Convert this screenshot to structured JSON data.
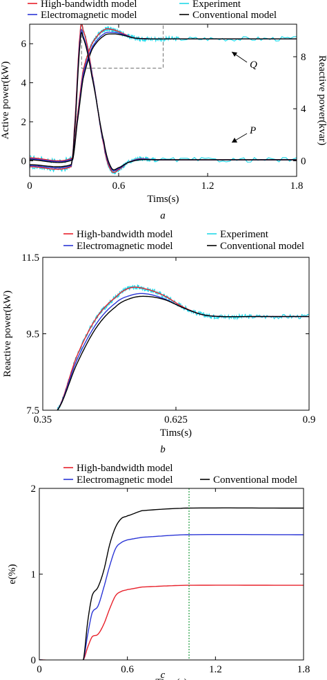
{
  "colors": {
    "high_bandwidth": "#e8202a",
    "electromagnetic": "#2a35d6",
    "conventional": "#000000",
    "experiment": "#22d8e8",
    "marker_line": "#1a9a3a",
    "zoom_box": "#707070"
  },
  "chart_data": [
    {
      "id": "a",
      "type": "line",
      "caption": "a",
      "xlabel": "Tims(s)",
      "ylabel": "Active power(kW)",
      "y2label": "Reactive power(kvar)",
      "xlim": [
        0,
        1.8
      ],
      "ylim": [
        -0.8,
        7
      ],
      "y2lim": [
        -1.2,
        10.5
      ],
      "xticks": [
        "0",
        "0.6",
        "1.2",
        "1.8"
      ],
      "yticks": [
        "0",
        "2",
        "4",
        "6"
      ],
      "y2ticks": [
        "0",
        "4",
        "8"
      ],
      "legend": [
        "High-bandwidth model",
        "Experiment",
        "Electromagnetic model",
        "Conventional model"
      ],
      "legend_position": "top",
      "annotations": [
        "Q",
        "P"
      ],
      "zoom_box": {
        "x": [
          0.35,
          0.9
        ],
        "y": [
          4.75,
          7.0
        ]
      },
      "series": [
        {
          "name": "High-bandwidth model",
          "curve": "Q",
          "x": [
            0,
            0.29,
            0.32,
            0.36,
            0.42,
            0.5,
            0.56,
            0.62,
            0.7,
            0.8,
            1.0,
            1.8
          ],
          "y": [
            0.15,
            0.15,
            2.2,
            4.6,
            6.0,
            6.7,
            6.72,
            6.55,
            6.3,
            6.25,
            6.25,
            6.25
          ]
        },
        {
          "name": "Electromagnetic model",
          "curve": "Q",
          "x": [
            0,
            0.29,
            0.32,
            0.36,
            0.42,
            0.5,
            0.56,
            0.62,
            0.7,
            0.8,
            1.0,
            1.8
          ],
          "y": [
            0.1,
            0.1,
            2.0,
            4.4,
            5.8,
            6.5,
            6.58,
            6.5,
            6.3,
            6.25,
            6.25,
            6.25
          ]
        },
        {
          "name": "Conventional model",
          "curve": "Q",
          "x": [
            0,
            0.29,
            0.32,
            0.36,
            0.42,
            0.5,
            0.56,
            0.62,
            0.7,
            0.8,
            1.0,
            1.8
          ],
          "y": [
            0.05,
            0.05,
            1.9,
            4.2,
            5.7,
            6.4,
            6.5,
            6.45,
            6.3,
            6.25,
            6.25,
            6.25
          ]
        },
        {
          "name": "High-bandwidth model",
          "curve": "P",
          "x": [
            0,
            0.28,
            0.3,
            0.34,
            0.36,
            0.42,
            0.5,
            0.55,
            0.6,
            0.66,
            0.74,
            0.85,
            1.8
          ],
          "y": [
            -0.3,
            -0.3,
            1.5,
            6.5,
            6.7,
            4.5,
            0.8,
            -0.5,
            -0.45,
            -0.1,
            0.1,
            0.05,
            0.05
          ]
        },
        {
          "name": "Electromagnetic model",
          "curve": "P",
          "x": [
            0,
            0.28,
            0.3,
            0.34,
            0.36,
            0.42,
            0.5,
            0.55,
            0.6,
            0.66,
            0.74,
            0.85,
            1.8
          ],
          "y": [
            -0.25,
            -0.25,
            1.3,
            6.2,
            6.4,
            4.4,
            0.9,
            -0.4,
            -0.4,
            -0.1,
            0.08,
            0.05,
            0.05
          ]
        },
        {
          "name": "Conventional model",
          "curve": "P",
          "x": [
            0,
            0.28,
            0.3,
            0.34,
            0.36,
            0.42,
            0.5,
            0.55,
            0.6,
            0.66,
            0.74,
            0.85,
            1.8
          ],
          "y": [
            -0.2,
            -0.2,
            1.2,
            6.0,
            6.3,
            4.3,
            1.0,
            -0.35,
            -0.35,
            -0.1,
            0.05,
            0.05,
            0.05
          ]
        }
      ]
    },
    {
      "id": "b",
      "type": "line",
      "caption": "b",
      "xlabel": "Tims(s)",
      "ylabel": "Reactive power(kW)",
      "xlim": [
        0.35,
        0.9
      ],
      "ylim": [
        7.5,
        11.5
      ],
      "xticks": [
        "0.35",
        "0.625",
        "0.9"
      ],
      "yticks": [
        "7.5",
        "9.5",
        "11.5"
      ],
      "legend": [
        "High-bandwidth model",
        "Experiment",
        "Electromagnetic model",
        "Conventional model"
      ],
      "legend_position": "top",
      "series": [
        {
          "name": "High-bandwidth model",
          "x": [
            0.38,
            0.42,
            0.46,
            0.5,
            0.53,
            0.56,
            0.6,
            0.64,
            0.68,
            0.72,
            0.78,
            0.9
          ],
          "y": [
            7.5,
            8.9,
            9.9,
            10.45,
            10.7,
            10.68,
            10.5,
            10.2,
            10.0,
            9.95,
            9.95,
            9.95
          ]
        },
        {
          "name": "Electromagnetic model",
          "x": [
            0.38,
            0.42,
            0.46,
            0.5,
            0.53,
            0.56,
            0.6,
            0.64,
            0.68,
            0.72,
            0.78,
            0.9
          ],
          "y": [
            7.5,
            8.8,
            9.75,
            10.3,
            10.5,
            10.55,
            10.42,
            10.18,
            10.0,
            9.95,
            9.95,
            9.95
          ]
        },
        {
          "name": "Conventional model",
          "x": [
            0.38,
            0.42,
            0.46,
            0.5,
            0.53,
            0.56,
            0.6,
            0.64,
            0.68,
            0.72,
            0.78,
            0.9
          ],
          "y": [
            7.5,
            8.7,
            9.65,
            10.2,
            10.42,
            10.48,
            10.4,
            10.18,
            10.0,
            9.95,
            9.95,
            9.95
          ]
        }
      ]
    },
    {
      "id": "c",
      "type": "line",
      "caption": "c",
      "xlabel": "Tims(s)",
      "ylabel": "e(%)",
      "xlim": [
        0,
        1.8
      ],
      "ylim": [
        0,
        2
      ],
      "xticks": [
        "0",
        "0.6",
        "1.2",
        "1.8"
      ],
      "yticks": [
        "0",
        "1",
        "2"
      ],
      "legend": [
        "High-bandwidth model",
        "Electromagnetic model",
        "Conventional model"
      ],
      "legend_position": "top",
      "vline_x": 1.02,
      "series": [
        {
          "name": "High-bandwidth model",
          "x": [
            0,
            0.3,
            0.33,
            0.36,
            0.4,
            0.44,
            0.48,
            0.52,
            0.56,
            0.6,
            0.7,
            1.0,
            1.8
          ],
          "y": [
            0,
            0,
            0.15,
            0.27,
            0.3,
            0.42,
            0.6,
            0.75,
            0.8,
            0.82,
            0.85,
            0.87,
            0.87
          ]
        },
        {
          "name": "Electromagnetic model",
          "x": [
            0,
            0.3,
            0.33,
            0.36,
            0.4,
            0.44,
            0.48,
            0.52,
            0.56,
            0.6,
            0.7,
            1.0,
            1.8
          ],
          "y": [
            0,
            0,
            0.3,
            0.55,
            0.63,
            0.85,
            1.1,
            1.3,
            1.37,
            1.4,
            1.43,
            1.46,
            1.46
          ]
        },
        {
          "name": "Conventional model",
          "x": [
            0,
            0.3,
            0.33,
            0.36,
            0.4,
            0.44,
            0.48,
            0.52,
            0.56,
            0.6,
            0.7,
            1.0,
            1.8
          ],
          "y": [
            0,
            0,
            0.45,
            0.75,
            0.85,
            1.05,
            1.35,
            1.55,
            1.65,
            1.68,
            1.74,
            1.77,
            1.77
          ]
        }
      ]
    }
  ]
}
